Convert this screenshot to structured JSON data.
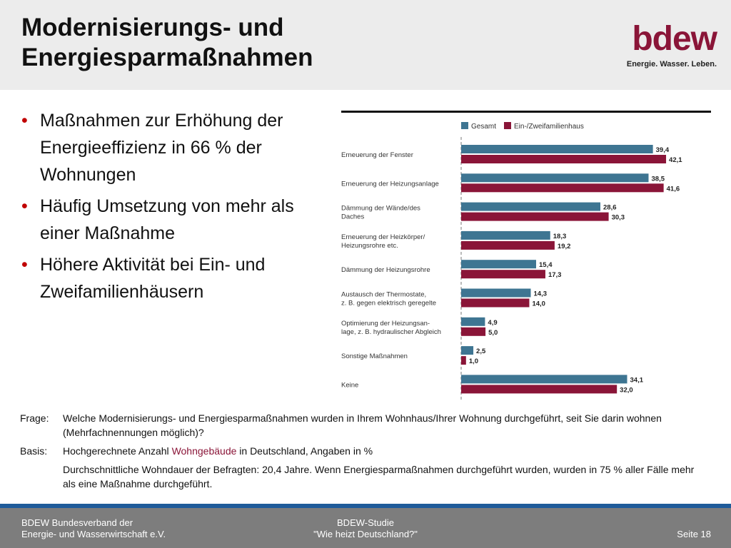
{
  "slide": {
    "title_line1": "Modernisierungs- und",
    "title_line2": "Energiesparmaßnahmen"
  },
  "logo": {
    "wordmark": "bdew",
    "tagline": "Energie. Wasser. Leben."
  },
  "bullets": [
    "Maßnahmen zur Erhöhung der Energieeffizienz in 66 % der Wohnungen",
    "Häufig Umsetzung von mehr als einer Maßnahme",
    "Höhere Aktivität bei Ein- und Zweifamilienhäusern"
  ],
  "chart_data": {
    "type": "bar",
    "orientation": "horizontal",
    "categories": [
      [
        "Erneuerung der Fenster"
      ],
      [
        "Erneuerung der Heizungsanlage"
      ],
      [
        "Dämmung der Wände/des",
        "Daches"
      ],
      [
        "Erneuerung der Heizkörper/",
        "Heizungsrohre etc."
      ],
      [
        "Dämmung der Heizungsrohre"
      ],
      [
        "Austausch der Thermostate,",
        "z. B. gegen elektrisch geregelte"
      ],
      [
        "Optimierung der Heizungsan-",
        "lage, z. B. hydraulischer Abgleich"
      ],
      [
        "Sonstige Maßnahmen"
      ],
      [
        "Keine"
      ]
    ],
    "series": [
      {
        "name": "Gesamt",
        "color": "#3e7592",
        "values": [
          39.4,
          38.5,
          28.6,
          18.3,
          15.4,
          14.3,
          4.9,
          2.5,
          34.1
        ]
      },
      {
        "name": "Ein-/Zweifamilienhaus",
        "color": "#8a1538",
        "values": [
          42.1,
          41.6,
          30.3,
          19.2,
          17.3,
          14.0,
          5.0,
          1.0,
          32.0
        ]
      }
    ],
    "value_labels": [
      [
        "39,4",
        "38,5",
        "28,6",
        "18,3",
        "15,4",
        "14,3",
        "4,9",
        "2,5",
        "34,1"
      ],
      [
        "42,1",
        "41,6",
        "30,3",
        "19,2",
        "17,3",
        "14,0",
        "5,0",
        "1,0",
        "32,0"
      ]
    ],
    "xlim": [
      0,
      45
    ],
    "legend_position": "top"
  },
  "notes": {
    "frage_label": "Frage:",
    "frage_text": "Welche Modernisierungs- und Energiesparmaßnahmen wurden in Ihrem Wohnhaus/Ihrer Wohnung durchgeführt, seit Sie darin wohnen (Mehrfachnennungen möglich)?",
    "basis_label": "Basis:",
    "basis_text_before": "Hochgerechnete Anzahl ",
    "basis_highlight": "Wohngebäude",
    "basis_text_after": " in Deutschland, Angaben in %",
    "extra_text": "Durchschnittliche Wohndauer der Befragten: 20,4 Jahre. Wenn Energiesparmaßnahmen durchgeführt wurden, wurden in 75 % aller Fälle mehr als eine Maßnahme durchgeführt."
  },
  "footer": {
    "left_line1": "BDEW Bundesverband der",
    "left_line2": "Energie- und Wasserwirtschaft e.V.",
    "center_line1": "BDEW-Studie",
    "center_line2": "\"Wie heizt Deutschland?\"",
    "right": "Seite 18"
  },
  "colors": {
    "accent": "#c00000",
    "brand": "#8a1538",
    "series_gesamt": "#3e7592",
    "series_efh": "#8a1538",
    "footer_bg": "#7d7d7d",
    "footer_bar": "#1f5b9a"
  }
}
